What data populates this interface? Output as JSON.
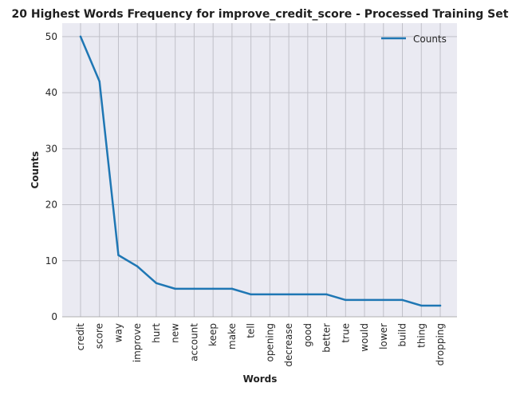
{
  "chart_data": {
    "type": "line",
    "title": "20 Highest Words Frequency for improve_credit_score - Processed Training Set",
    "xlabel": "Words",
    "ylabel": "Counts",
    "categories": [
      "credit",
      "score",
      "way",
      "improve",
      "hurt",
      "new",
      "account",
      "keep",
      "make",
      "tell",
      "opening",
      "decrease",
      "good",
      "better",
      "true",
      "would",
      "lower",
      "build",
      "thing",
      "dropping"
    ],
    "series": [
      {
        "name": "Counts",
        "values": [
          50,
          42,
          11,
          9,
          6,
          5,
          5,
          5,
          5,
          4,
          4,
          4,
          4,
          4,
          3,
          3,
          3,
          3,
          2,
          2
        ]
      }
    ],
    "ylim": [
      0,
      52.4
    ],
    "yticks": [
      0,
      10,
      20,
      30,
      40,
      50
    ],
    "grid": true,
    "legend_position": "top-right",
    "colors": {
      "line": "#1f77b4",
      "plot_background": "#eaeaf2",
      "grid": "#c0c0c8"
    }
  }
}
